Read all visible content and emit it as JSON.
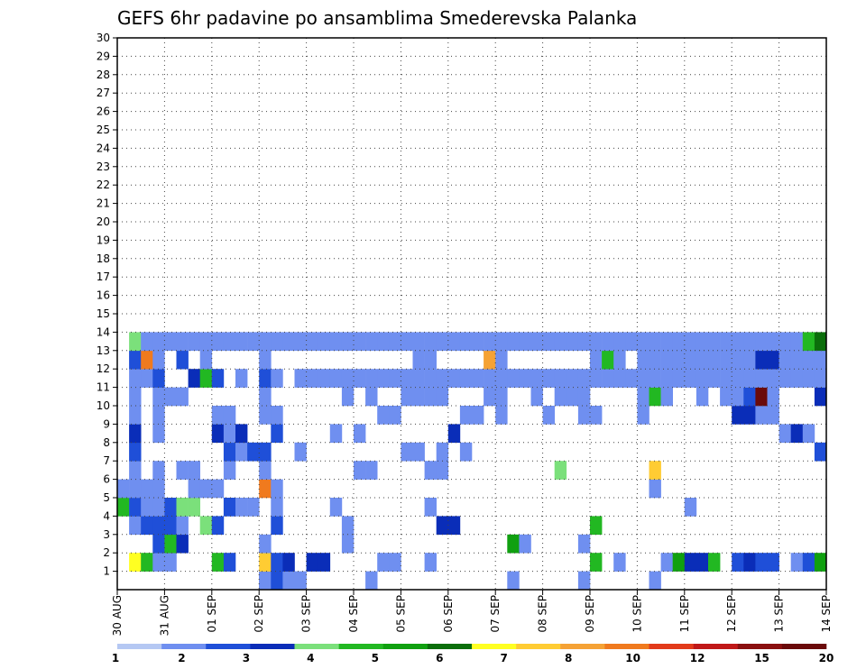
{
  "chart_data": {
    "type": "heatmap",
    "title": "GEFS 6hr padavine po ansamblima Smederevska Palanka",
    "xlabel": "",
    "ylabel": "",
    "x_tick_labels": [
      "30 AUG",
      "31 AUG",
      "01 SEP",
      "02 SEP",
      "03 SEP",
      "04 SEP",
      "05 SEP",
      "06 SEP",
      "07 SEP",
      "08 SEP",
      "09 SEP",
      "10 SEP",
      "11 SEP",
      "12 SEP",
      "13 SEP",
      "14 SEP"
    ],
    "y_tick_labels": [
      "1",
      "2",
      "3",
      "4",
      "5",
      "6",
      "7",
      "8",
      "9",
      "10",
      "11",
      "12",
      "13",
      "14",
      "15",
      "16",
      "17",
      "18",
      "19",
      "20",
      "21",
      "22",
      "23",
      "24",
      "25",
      "26",
      "27",
      "28",
      "29",
      "30"
    ],
    "time_steps_per_day": 4,
    "grid": true,
    "colorbar": {
      "position": "bottom",
      "labels": [
        "1",
        "2",
        "3",
        "4",
        "5",
        "6",
        "7",
        "8",
        "10",
        "12",
        "15",
        "20"
      ],
      "colors": [
        "#b5c8f3",
        "#6f8ff0",
        "#1f4fd8",
        "#0a2db8",
        "#7be07b",
        "#22b822",
        "#10a010",
        "#0b6e0b",
        "#ffff22",
        "#ffcc33",
        "#f5a235",
        "#f07a1e",
        "#e23a1a",
        "#c01818",
        "#8a1010",
        "#6a0a0a"
      ]
    },
    "cells": [
      [
        0,
        13,
        5
      ],
      [
        0,
        12,
        3
      ],
      [
        0,
        12,
        1
      ],
      [
        0,
        13,
        2
      ],
      [
        0,
        14,
        1
      ],
      [
        0,
        15,
        1
      ],
      [
        0,
        21,
        1
      ],
      [
        0,
        33,
        1
      ],
      [
        0,
        39,
        1
      ],
      [
        0,
        45,
        1
      ],
      [
        1,
        1,
        8
      ],
      [
        1,
        2,
        5
      ],
      [
        1,
        3,
        1
      ],
      [
        1,
        4,
        1
      ],
      [
        1,
        8,
        5
      ],
      [
        1,
        9,
        2
      ],
      [
        1,
        12,
        9
      ],
      [
        1,
        13,
        2
      ],
      [
        1,
        14,
        3
      ],
      [
        1,
        16,
        3
      ],
      [
        1,
        17,
        3
      ],
      [
        1,
        22,
        1
      ],
      [
        1,
        23,
        1
      ],
      [
        1,
        26,
        1
      ],
      [
        1,
        40,
        5
      ],
      [
        1,
        42,
        1
      ],
      [
        1,
        46,
        1
      ],
      [
        1,
        47,
        6
      ],
      [
        1,
        48,
        3
      ],
      [
        1,
        49,
        3
      ],
      [
        1,
        50,
        5
      ],
      [
        1,
        52,
        2
      ],
      [
        1,
        53,
        3
      ],
      [
        1,
        54,
        2
      ],
      [
        1,
        55,
        2
      ],
      [
        1,
        57,
        1
      ],
      [
        1,
        58,
        2
      ],
      [
        1,
        59,
        6
      ],
      [
        2,
        3,
        2
      ],
      [
        2,
        4,
        5
      ],
      [
        2,
        5,
        3
      ],
      [
        2,
        12,
        1
      ],
      [
        2,
        19,
        1
      ],
      [
        2,
        33,
        6
      ],
      [
        2,
        34,
        1
      ],
      [
        2,
        39,
        1
      ],
      [
        3,
        1,
        1
      ],
      [
        3,
        2,
        2
      ],
      [
        3,
        3,
        2
      ],
      [
        3,
        4,
        2
      ],
      [
        3,
        5,
        1
      ],
      [
        3,
        7,
        4
      ],
      [
        3,
        8,
        2
      ],
      [
        3,
        13,
        2
      ],
      [
        3,
        19,
        1
      ],
      [
        3,
        27,
        3
      ],
      [
        3,
        28,
        3
      ],
      [
        3,
        40,
        5
      ],
      [
        4,
        0,
        5
      ],
      [
        4,
        1,
        2
      ],
      [
        4,
        2,
        1
      ],
      [
        4,
        3,
        1
      ],
      [
        4,
        4,
        2
      ],
      [
        4,
        5,
        4
      ],
      [
        4,
        6,
        4
      ],
      [
        4,
        9,
        2
      ],
      [
        4,
        10,
        1
      ],
      [
        4,
        11,
        1
      ],
      [
        4,
        13,
        1
      ],
      [
        4,
        18,
        1
      ],
      [
        4,
        26,
        1
      ],
      [
        4,
        48,
        1
      ],
      [
        5,
        0,
        1
      ],
      [
        5,
        1,
        1
      ],
      [
        5,
        2,
        1
      ],
      [
        5,
        3,
        1
      ],
      [
        5,
        6,
        1
      ],
      [
        5,
        7,
        1
      ],
      [
        5,
        8,
        1
      ],
      [
        5,
        12,
        11
      ],
      [
        5,
        13,
        1
      ],
      [
        5,
        45,
        1
      ],
      [
        6,
        1,
        1
      ],
      [
        6,
        3,
        1
      ],
      [
        6,
        5,
        1
      ],
      [
        6,
        6,
        1
      ],
      [
        6,
        9,
        1
      ],
      [
        6,
        12,
        1
      ],
      [
        6,
        20,
        1
      ],
      [
        6,
        21,
        1
      ],
      [
        6,
        26,
        1
      ],
      [
        6,
        27,
        1
      ],
      [
        6,
        37,
        4
      ],
      [
        6,
        45,
        9
      ],
      [
        7,
        1,
        2
      ],
      [
        7,
        9,
        2
      ],
      [
        7,
        10,
        1
      ],
      [
        7,
        11,
        2
      ],
      [
        7,
        12,
        2
      ],
      [
        7,
        15,
        1
      ],
      [
        7,
        24,
        1
      ],
      [
        7,
        25,
        1
      ],
      [
        7,
        27,
        1
      ],
      [
        7,
        29,
        1
      ],
      [
        7,
        59,
        2
      ],
      [
        8,
        1,
        3
      ],
      [
        8,
        3,
        1
      ],
      [
        8,
        8,
        3
      ],
      [
        8,
        9,
        1
      ],
      [
        8,
        10,
        3
      ],
      [
        8,
        13,
        2
      ],
      [
        8,
        18,
        1
      ],
      [
        8,
        20,
        1
      ],
      [
        8,
        28,
        3
      ],
      [
        8,
        56,
        1
      ],
      [
        8,
        57,
        3
      ],
      [
        8,
        58,
        1
      ],
      [
        9,
        1,
        1
      ],
      [
        9,
        3,
        1
      ],
      [
        9,
        8,
        1
      ],
      [
        9,
        9,
        1
      ],
      [
        9,
        12,
        1
      ],
      [
        9,
        13,
        1
      ],
      [
        9,
        22,
        1
      ],
      [
        9,
        23,
        1
      ],
      [
        9,
        29,
        1
      ],
      [
        9,
        30,
        1
      ],
      [
        9,
        32,
        1
      ],
      [
        9,
        36,
        1
      ],
      [
        9,
        39,
        1
      ],
      [
        9,
        40,
        1
      ],
      [
        9,
        44,
        1
      ],
      [
        9,
        52,
        3
      ],
      [
        9,
        53,
        3
      ],
      [
        9,
        54,
        1
      ],
      [
        9,
        55,
        1
      ],
      [
        10,
        1,
        1
      ],
      [
        10,
        3,
        1
      ],
      [
        10,
        4,
        1
      ],
      [
        10,
        5,
        1
      ],
      [
        10,
        12,
        1
      ],
      [
        10,
        19,
        1
      ],
      [
        10,
        21,
        1
      ],
      [
        10,
        24,
        1
      ],
      [
        10,
        25,
        1
      ],
      [
        10,
        26,
        1
      ],
      [
        10,
        27,
        1
      ],
      [
        10,
        31,
        1
      ],
      [
        10,
        32,
        1
      ],
      [
        10,
        35,
        1
      ],
      [
        10,
        37,
        1
      ],
      [
        10,
        38,
        1
      ],
      [
        10,
        39,
        1
      ],
      [
        10,
        44,
        1
      ],
      [
        10,
        45,
        5
      ],
      [
        10,
        46,
        1
      ],
      [
        10,
        49,
        1
      ],
      [
        10,
        51,
        1
      ],
      [
        10,
        52,
        1
      ],
      [
        10,
        53,
        2
      ],
      [
        10,
        54,
        15
      ],
      [
        10,
        55,
        1
      ],
      [
        10,
        59,
        3
      ],
      [
        11,
        1,
        1
      ],
      [
        11,
        2,
        1
      ],
      [
        11,
        3,
        2
      ],
      [
        11,
        6,
        3
      ],
      [
        11,
        7,
        5
      ],
      [
        11,
        8,
        2
      ],
      [
        11,
        10,
        1
      ],
      [
        11,
        12,
        2
      ],
      [
        11,
        13,
        1
      ],
      [
        11,
        15,
        1
      ],
      [
        11,
        16,
        1
      ],
      [
        11,
        17,
        1
      ],
      [
        11,
        18,
        1
      ],
      [
        11,
        19,
        1
      ],
      [
        11,
        20,
        1
      ],
      [
        11,
        21,
        1
      ],
      [
        11,
        22,
        1
      ],
      [
        11,
        23,
        1
      ],
      [
        11,
        24,
        1
      ],
      [
        11,
        25,
        1
      ],
      [
        11,
        26,
        1
      ],
      [
        11,
        27,
        1
      ],
      [
        11,
        28,
        1
      ],
      [
        11,
        29,
        1
      ],
      [
        11,
        30,
        1
      ],
      [
        11,
        31,
        1
      ],
      [
        11,
        32,
        1
      ],
      [
        11,
        33,
        1
      ],
      [
        11,
        34,
        1
      ],
      [
        11,
        35,
        1
      ],
      [
        11,
        36,
        1
      ],
      [
        11,
        37,
        1
      ],
      [
        11,
        38,
        1
      ],
      [
        11,
        39,
        1
      ],
      [
        11,
        40,
        1
      ],
      [
        11,
        41,
        1
      ],
      [
        11,
        42,
        1
      ],
      [
        11,
        43,
        1
      ],
      [
        11,
        44,
        1
      ],
      [
        11,
        45,
        1
      ],
      [
        11,
        46,
        1
      ],
      [
        11,
        47,
        1
      ],
      [
        11,
        48,
        1
      ],
      [
        11,
        49,
        1
      ],
      [
        11,
        50,
        1
      ],
      [
        11,
        51,
        1
      ],
      [
        11,
        52,
        1
      ],
      [
        11,
        53,
        1
      ],
      [
        11,
        54,
        1
      ],
      [
        11,
        55,
        1
      ],
      [
        11,
        56,
        1
      ],
      [
        11,
        57,
        1
      ],
      [
        11,
        58,
        1
      ],
      [
        11,
        59,
        1
      ],
      [
        12,
        1,
        2
      ],
      [
        12,
        2,
        11
      ],
      [
        12,
        3,
        1
      ],
      [
        12,
        5,
        2
      ],
      [
        12,
        7,
        1
      ],
      [
        12,
        12,
        1
      ],
      [
        12,
        25,
        1
      ],
      [
        12,
        26,
        1
      ],
      [
        12,
        31,
        10
      ],
      [
        12,
        32,
        1
      ],
      [
        12,
        40,
        1
      ],
      [
        12,
        41,
        5
      ],
      [
        12,
        42,
        1
      ],
      [
        12,
        44,
        1
      ],
      [
        12,
        45,
        1
      ],
      [
        12,
        46,
        1
      ],
      [
        12,
        47,
        1
      ],
      [
        12,
        48,
        1
      ],
      [
        12,
        49,
        1
      ],
      [
        12,
        50,
        1
      ],
      [
        12,
        51,
        1
      ],
      [
        12,
        52,
        1
      ],
      [
        12,
        53,
        1
      ],
      [
        12,
        54,
        3
      ],
      [
        12,
        55,
        3
      ],
      [
        12,
        56,
        1
      ],
      [
        12,
        57,
        1
      ],
      [
        12,
        58,
        1
      ],
      [
        12,
        59,
        1
      ],
      [
        13,
        1,
        4
      ],
      [
        13,
        2,
        1
      ],
      [
        13,
        3,
        1
      ],
      [
        13,
        4,
        1
      ],
      [
        13,
        5,
        1
      ],
      [
        13,
        6,
        1
      ],
      [
        13,
        7,
        1
      ],
      [
        13,
        8,
        1
      ],
      [
        13,
        9,
        1
      ],
      [
        13,
        10,
        1
      ],
      [
        13,
        11,
        1
      ],
      [
        13,
        12,
        1
      ],
      [
        13,
        13,
        1
      ],
      [
        13,
        14,
        1
      ],
      [
        13,
        15,
        1
      ],
      [
        13,
        16,
        1
      ],
      [
        13,
        17,
        1
      ],
      [
        13,
        18,
        1
      ],
      [
        13,
        19,
        1
      ],
      [
        13,
        20,
        1
      ],
      [
        13,
        21,
        1
      ],
      [
        13,
        22,
        1
      ],
      [
        13,
        23,
        1
      ],
      [
        13,
        24,
        1
      ],
      [
        13,
        25,
        1
      ],
      [
        13,
        26,
        1
      ],
      [
        13,
        27,
        1
      ],
      [
        13,
        28,
        1
      ],
      [
        13,
        29,
        1
      ],
      [
        13,
        30,
        1
      ],
      [
        13,
        31,
        1
      ],
      [
        13,
        32,
        1
      ],
      [
        13,
        33,
        1
      ],
      [
        13,
        34,
        1
      ],
      [
        13,
        35,
        1
      ],
      [
        13,
        36,
        1
      ],
      [
        13,
        37,
        1
      ],
      [
        13,
        38,
        1
      ],
      [
        13,
        39,
        1
      ],
      [
        13,
        40,
        1
      ],
      [
        13,
        41,
        1
      ],
      [
        13,
        42,
        1
      ],
      [
        13,
        43,
        1
      ],
      [
        13,
        44,
        1
      ],
      [
        13,
        45,
        1
      ],
      [
        13,
        46,
        1
      ],
      [
        13,
        47,
        1
      ],
      [
        13,
        48,
        1
      ],
      [
        13,
        49,
        1
      ],
      [
        13,
        50,
        1
      ],
      [
        13,
        51,
        1
      ],
      [
        13,
        52,
        1
      ],
      [
        13,
        53,
        1
      ],
      [
        13,
        54,
        1
      ],
      [
        13,
        55,
        1
      ],
      [
        13,
        56,
        1
      ],
      [
        13,
        57,
        1
      ],
      [
        13,
        58,
        5
      ],
      [
        13,
        59,
        7
      ]
    ]
  }
}
